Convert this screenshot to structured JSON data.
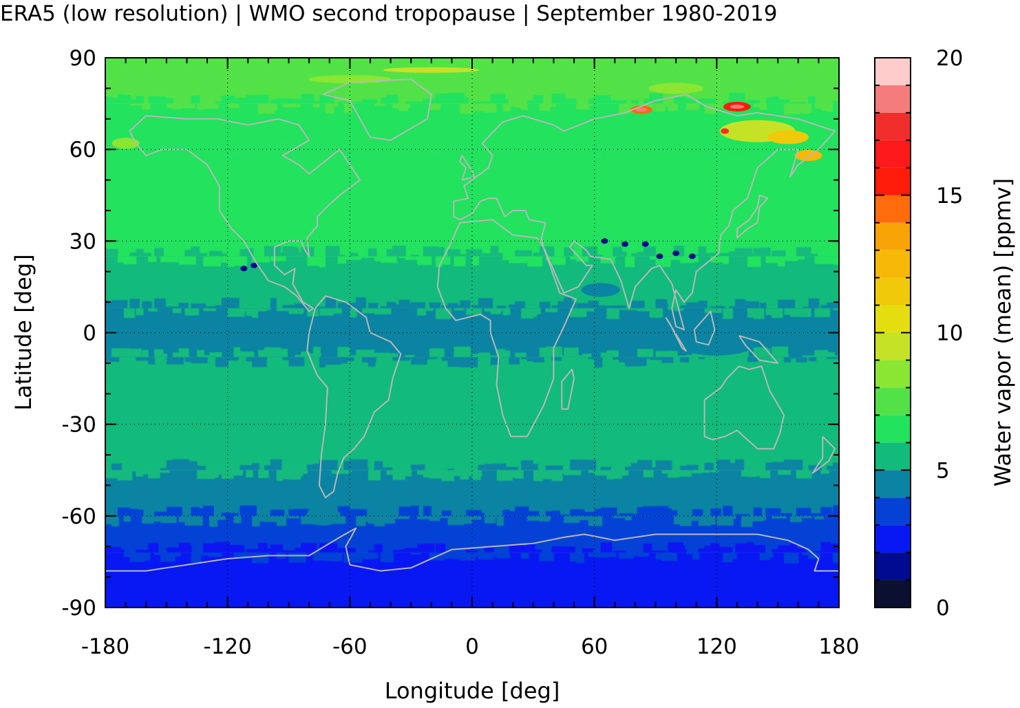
{
  "title": "ERA5 (low resolution) | WMO second tropopause | September 1980-2019",
  "chart_data": {
    "type": "heatmap",
    "title": "ERA5 (low resolution) | WMO second tropopause | September 1980-2019",
    "xlabel": "Longitude [deg]",
    "ylabel": "Latitude [deg]",
    "xlim": [
      -180,
      180
    ],
    "ylim": [
      -90,
      90
    ],
    "xticks": [
      "-180",
      "-120",
      "-60",
      "0",
      "60",
      "120",
      "180"
    ],
    "yticks": [
      "90",
      "60",
      "30",
      "0",
      "-30",
      "-60",
      "-90"
    ],
    "grid": true,
    "colorbar": {
      "label": "Water vapor (mean) [ppmv]",
      "range": [
        0,
        20
      ],
      "ticks": [
        "0",
        "5",
        "10",
        "15",
        "20"
      ],
      "levels": [
        {
          "from": 0,
          "to": 1,
          "color": "#0b0f30"
        },
        {
          "from": 1,
          "to": 2,
          "color": "#000c8f"
        },
        {
          "from": 2,
          "to": 3,
          "color": "#0818f2"
        },
        {
          "from": 3,
          "to": 4,
          "color": "#0442d6"
        },
        {
          "from": 4,
          "to": 5,
          "color": "#0a84a2"
        },
        {
          "from": 5,
          "to": 6,
          "color": "#12ba7c"
        },
        {
          "from": 6,
          "to": 7,
          "color": "#22e25e"
        },
        {
          "from": 7,
          "to": 8,
          "color": "#52e248"
        },
        {
          "from": 8,
          "to": 9,
          "color": "#8ae632"
        },
        {
          "from": 9,
          "to": 10,
          "color": "#c6e226"
        },
        {
          "from": 10,
          "to": 11,
          "color": "#e4de10"
        },
        {
          "from": 11,
          "to": 12,
          "color": "#f0ca0a"
        },
        {
          "from": 12,
          "to": 13,
          "color": "#f8b808"
        },
        {
          "from": 13,
          "to": 14,
          "color": "#f8a406"
        },
        {
          "from": 14,
          "to": 15,
          "color": "#fe6c0c"
        },
        {
          "from": 15,
          "to": 16,
          "color": "#ff1c0a"
        },
        {
          "from": 16,
          "to": 17,
          "color": "#fc1a1a"
        },
        {
          "from": 17,
          "to": 18,
          "color": "#f02e2c"
        },
        {
          "from": 18,
          "to": 19,
          "color": "#f47c7c"
        },
        {
          "from": 19,
          "to": 20,
          "color": "#ffcccc"
        }
      ]
    },
    "zonal_structure": [
      {
        "lat_from": 90,
        "lat_to": 75,
        "value": 7
      },
      {
        "lat_from": 75,
        "lat_to": 60,
        "value": 6
      },
      {
        "lat_from": 60,
        "lat_to": 25,
        "value": 6.5
      },
      {
        "lat_from": 25,
        "lat_to": 8,
        "value": 5.5
      },
      {
        "lat_from": 8,
        "lat_to": -8,
        "value": 4.5
      },
      {
        "lat_from": -8,
        "lat_to": -45,
        "value": 5.5
      },
      {
        "lat_from": -45,
        "lat_to": -60,
        "value": 4.5
      },
      {
        "lat_from": -60,
        "lat_to": -72,
        "value": 3.5
      },
      {
        "lat_from": -72,
        "lat_to": -90,
        "value": 2.5
      }
    ],
    "features": [
      {
        "lon": 83,
        "lat": 73,
        "value": 18
      },
      {
        "lon": 130,
        "lat": 74,
        "value": 18
      },
      {
        "lon": 150,
        "lat": 64,
        "value": 12
      },
      {
        "lon": 90,
        "lat": 25,
        "value": 1.5
      },
      {
        "lon": -105,
        "lat": 24,
        "value": 1.5
      }
    ]
  }
}
